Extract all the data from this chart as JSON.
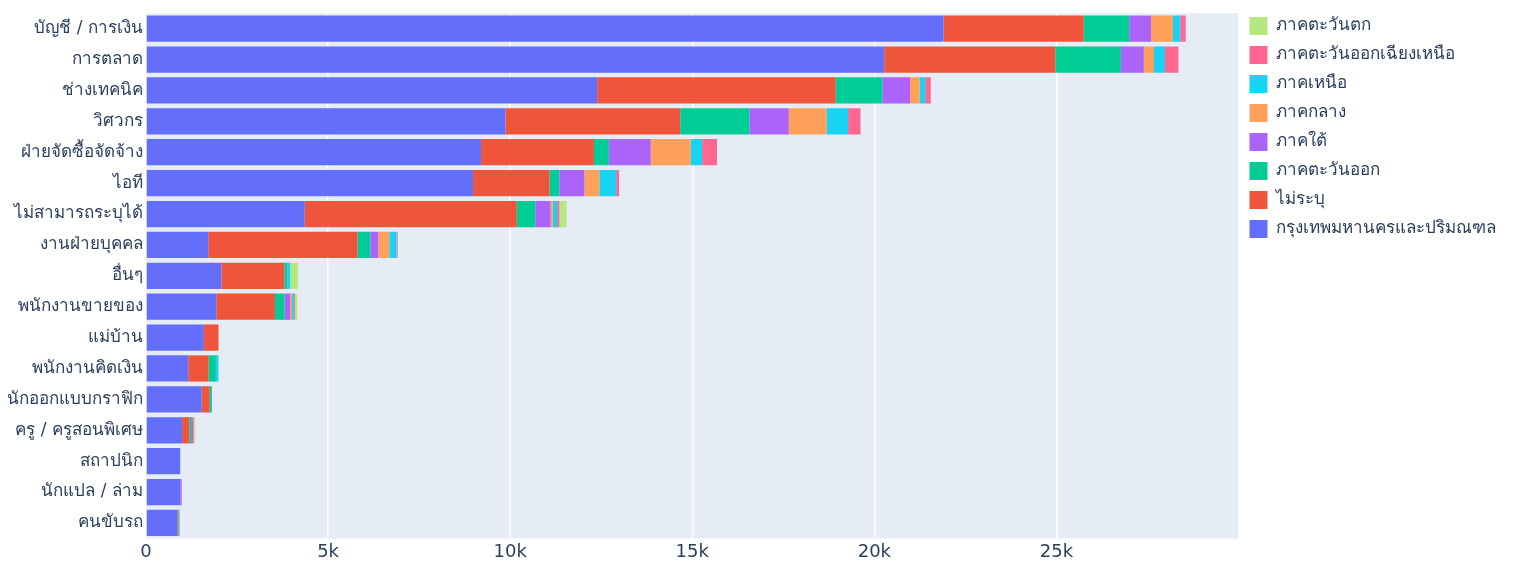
{
  "chart_data": {
    "type": "bar",
    "orientation": "horizontal",
    "stacked": true,
    "categories": [
      "บัญชี / การเงิน",
      "การตลาด",
      "ช่างเทคนิค",
      "วิศวกร",
      "ฝ่ายจัดซื้อจัดจ้าง",
      "ไอที",
      "ไม่สามารถระบุได้",
      "งานฝ่ายบุคคล",
      "อื่นๆ",
      "พนักงานขายของ",
      "แม่บ้าน",
      "พนักงานคิดเงิน",
      "นักออกแบบกราฟิก",
      "ครู / ครูสอนพิเศษ",
      "สถาปนิก",
      "นักแปล / ล่าม",
      "คนขับรถ"
    ],
    "series": [
      {
        "name": "กรุงเทพมหานครและปริมณฑล",
        "color": "#636efa",
        "values": [
          21.9,
          20.27,
          12.39,
          9.87,
          9.2,
          8.98,
          4.36,
          1.71,
          2.07,
          1.93,
          1.59,
          1.16,
          1.53,
          0.99,
          0.94,
          0.94,
          0.86
        ]
      },
      {
        "name": "ไม่ระบุ",
        "color": "#ef553b",
        "values": [
          3.85,
          4.7,
          6.55,
          4.8,
          3.1,
          2.1,
          5.82,
          4.1,
          1.73,
          1.61,
          0.4,
          0.56,
          0.22,
          0.2,
          0,
          0,
          0.03
        ]
      },
      {
        "name": "ภาคตะวันออก",
        "color": "#00cc96",
        "values": [
          1.25,
          1.8,
          1.28,
          1.9,
          0.41,
          0.27,
          0.51,
          0.35,
          0.08,
          0.26,
          0,
          0.2,
          0.06,
          0.05,
          0,
          0,
          0.03
        ]
      },
      {
        "name": "ภาคใต้",
        "color": "#ab63fa",
        "values": [
          0.6,
          0.63,
          0.76,
          1.08,
          1.15,
          0.69,
          0.42,
          0.22,
          0,
          0.16,
          0,
          0,
          0,
          0.05,
          0,
          0.04,
          0
        ]
      },
      {
        "name": "ภาคกลาง",
        "color": "#ffa15a",
        "values": [
          0.6,
          0.28,
          0.27,
          1.04,
          1.1,
          0.41,
          0.06,
          0.3,
          0,
          0.05,
          0,
          0,
          0,
          0.03,
          0,
          0,
          0
        ]
      },
      {
        "name": "ภาคเหนือ",
        "color": "#19d3f3",
        "values": [
          0.2,
          0.3,
          0.15,
          0.59,
          0.31,
          0.46,
          0.12,
          0.2,
          0.08,
          0.05,
          0,
          0.07,
          0,
          0,
          0,
          0,
          0
        ]
      },
      {
        "name": "ภาคตะวันออกเฉียงเหนือ",
        "color": "#ff6692",
        "values": [
          0.15,
          0.37,
          0.15,
          0.34,
          0.41,
          0.08,
          0.06,
          0.03,
          0,
          0.03,
          0,
          0,
          0,
          0,
          0,
          0,
          0
        ]
      },
      {
        "name": "ภาคตะวันตก",
        "color": "#b6e880",
        "values": [
          0,
          0,
          0,
          0,
          0,
          0,
          0.2,
          0,
          0.22,
          0.06,
          0,
          0,
          0,
          0.03,
          0,
          0,
          0
        ]
      }
    ],
    "xlim": [
      0,
      30
    ],
    "xticks": [
      {
        "value": 0,
        "label": "0"
      },
      {
        "value": 5,
        "label": "5k"
      },
      {
        "value": 10,
        "label": "10k"
      },
      {
        "value": 15,
        "label": "15k"
      },
      {
        "value": 20,
        "label": "20k"
      },
      {
        "value": 25,
        "label": "25k"
      }
    ],
    "grid": "x",
    "legend": "right"
  }
}
